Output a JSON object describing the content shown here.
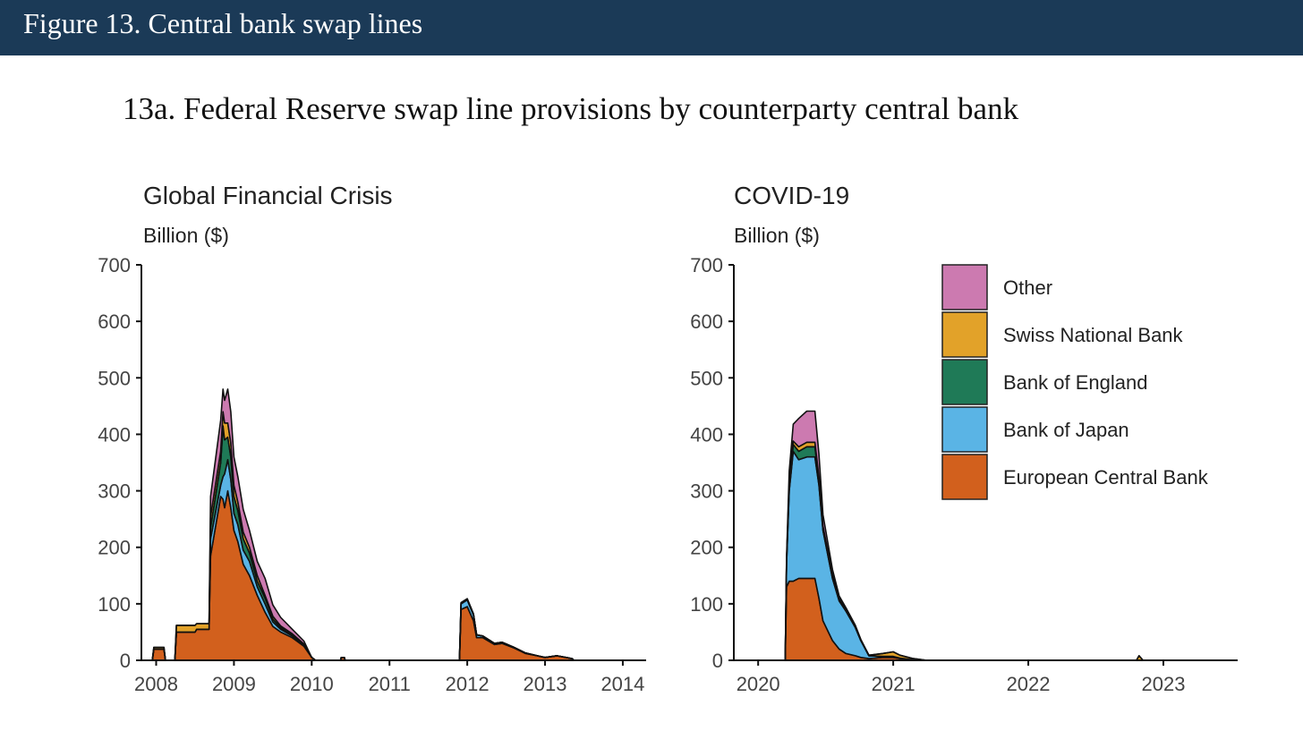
{
  "header": {
    "title": "Figure 13. Central bank swap lines"
  },
  "figure": {
    "subtitle": "13a. Federal Reserve swap line provisions by counterparty central bank"
  },
  "colors": {
    "header_bg": "#1b3a57",
    "European Central Bank": "#d2601d",
    "Bank of Japan": "#5ab4e5",
    "Bank of England": "#1f7a57",
    "Swiss National Bank": "#e2a229",
    "Other": "#cc7ab0"
  },
  "chart_data": [
    {
      "type": "area",
      "stacked": true,
      "title": "Global Financial Crisis",
      "ylabel": "Billion ($)",
      "xlabel": "",
      "ylim": [
        0,
        700
      ],
      "yticks": [
        0,
        100,
        200,
        300,
        400,
        500,
        600,
        700
      ],
      "xlim": [
        2007.81,
        2014.3
      ],
      "xticks": [
        2008,
        2009,
        2010,
        2011,
        2012,
        2013,
        2014
      ],
      "xtick_labels": [
        "2008",
        "2009",
        "2010",
        "2011",
        "2012",
        "2013",
        "2014"
      ],
      "x": [
        2007.95,
        2007.97,
        2008.1,
        2008.12,
        2008.24,
        2008.26,
        2008.5,
        2008.52,
        2008.68,
        2008.7,
        2008.83,
        2008.86,
        2008.88,
        2008.92,
        2008.96,
        2009.0,
        2009.05,
        2009.12,
        2009.2,
        2009.3,
        2009.4,
        2009.5,
        2009.6,
        2009.75,
        2009.9,
        2010.0,
        2010.05,
        2010.37,
        2010.38,
        2010.42,
        2010.43,
        2011.9,
        2011.92,
        2012.0,
        2012.08,
        2012.12,
        2012.2,
        2012.35,
        2012.45,
        2012.6,
        2012.75,
        2012.9,
        2013.0,
        2013.15,
        2013.35,
        2013.37
      ],
      "series": [
        {
          "name": "European Central Bank",
          "values": [
            0,
            20,
            20,
            0,
            0,
            50,
            50,
            55,
            55,
            185,
            290,
            285,
            270,
            300,
            270,
            230,
            210,
            170,
            150,
            115,
            85,
            60,
            50,
            40,
            25,
            5,
            0,
            0,
            5,
            5,
            0,
            0,
            90,
            95,
            70,
            40,
            40,
            28,
            30,
            22,
            12,
            8,
            5,
            8,
            3,
            0
          ]
        },
        {
          "name": "Bank of Japan",
          "values": [
            0,
            0,
            0,
            0,
            0,
            0,
            0,
            0,
            0,
            30,
            20,
            40,
            60,
            55,
            50,
            30,
            30,
            25,
            25,
            15,
            15,
            8,
            5,
            3,
            2,
            0,
            0,
            0,
            0,
            0,
            0,
            0,
            10,
            12,
            10,
            5,
            3,
            2,
            2,
            1,
            1,
            0,
            0,
            0,
            0,
            0
          ]
        },
        {
          "name": "Bank of England",
          "values": [
            0,
            0,
            0,
            0,
            0,
            0,
            0,
            0,
            0,
            20,
            40,
            90,
            60,
            40,
            40,
            30,
            25,
            20,
            15,
            10,
            10,
            5,
            3,
            2,
            1,
            0,
            0,
            0,
            0,
            0,
            0,
            0,
            1,
            1,
            1,
            0,
            0,
            0,
            0,
            0,
            0,
            0,
            0,
            0,
            0,
            0
          ]
        },
        {
          "name": "Swiss National Bank",
          "values": [
            0,
            3,
            3,
            0,
            0,
            12,
            12,
            10,
            10,
            20,
            20,
            25,
            30,
            25,
            25,
            20,
            15,
            12,
            10,
            10,
            5,
            5,
            3,
            2,
            1,
            0,
            0,
            0,
            0,
            0,
            0,
            0,
            1,
            1,
            1,
            0,
            0,
            0,
            0,
            0,
            0,
            0,
            0,
            0,
            0,
            0
          ]
        },
        {
          "name": "Other",
          "values": [
            0,
            0,
            0,
            0,
            0,
            0,
            0,
            0,
            0,
            35,
            55,
            40,
            40,
            60,
            55,
            50,
            45,
            40,
            30,
            25,
            30,
            20,
            15,
            8,
            5,
            0,
            0,
            0,
            0,
            0,
            0,
            0,
            0,
            0,
            0,
            0,
            0,
            0,
            0,
            0,
            0,
            0,
            0,
            0,
            0,
            0
          ]
        }
      ]
    },
    {
      "type": "area",
      "stacked": true,
      "title": "COVID-19",
      "ylabel": "Billion ($)",
      "xlabel": "",
      "ylim": [
        0,
        700
      ],
      "yticks": [
        0,
        100,
        200,
        300,
        400,
        500,
        600,
        700
      ],
      "xlim": [
        2019.82,
        2023.55
      ],
      "xticks": [
        2020,
        2021,
        2022,
        2023
      ],
      "xtick_labels": [
        "2020",
        "2021",
        "2022",
        "2023"
      ],
      "x": [
        2020.2,
        2020.21,
        2020.23,
        2020.26,
        2020.3,
        2020.36,
        2020.42,
        2020.45,
        2020.48,
        2020.55,
        2020.6,
        2020.65,
        2020.72,
        2020.76,
        2020.82,
        2020.92,
        2021.0,
        2021.05,
        2021.15,
        2021.25,
        2022.0,
        2022.8,
        2022.82,
        2022.85
      ],
      "series": [
        {
          "name": "European Central Bank",
          "values": [
            0,
            130,
            140,
            140,
            145,
            145,
            145,
            110,
            70,
            35,
            20,
            12,
            8,
            5,
            3,
            5,
            5,
            3,
            1,
            0,
            0,
            0,
            0,
            0
          ]
        },
        {
          "name": "Bank of Japan",
          "values": [
            0,
            40,
            160,
            230,
            210,
            215,
            215,
            200,
            160,
            110,
            85,
            75,
            50,
            30,
            5,
            2,
            2,
            1,
            0,
            0,
            0,
            0,
            0,
            0
          ]
        },
        {
          "name": "Bank of England",
          "values": [
            0,
            5,
            10,
            12,
            15,
            18,
            18,
            10,
            5,
            3,
            2,
            1,
            0,
            0,
            0,
            0,
            0,
            0,
            0,
            0,
            0,
            0,
            0,
            0
          ]
        },
        {
          "name": "Swiss National Bank",
          "values": [
            0,
            3,
            5,
            6,
            8,
            8,
            8,
            5,
            3,
            3,
            2,
            2,
            2,
            1,
            1,
            5,
            8,
            5,
            2,
            0,
            0,
            0,
            8,
            0
          ]
        },
        {
          "name": "Other",
          "values": [
            0,
            5,
            20,
            30,
            50,
            55,
            55,
            40,
            20,
            10,
            5,
            3,
            2,
            1,
            0,
            0,
            0,
            0,
            0,
            0,
            0,
            0,
            0,
            0
          ]
        }
      ],
      "legend": {
        "position": "top-right",
        "order": [
          "Other",
          "Swiss National Bank",
          "Bank of England",
          "Bank of Japan",
          "European Central Bank"
        ]
      }
    }
  ]
}
